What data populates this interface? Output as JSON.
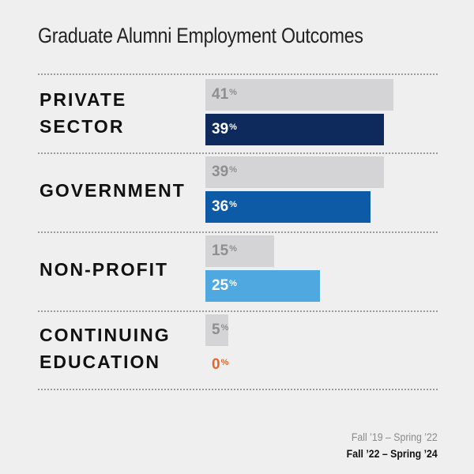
{
  "title": "Graduate Alumni Employment Outcomes",
  "colors": {
    "background": "#efefef",
    "previous": "#d4d4d6",
    "previous_text": "#8e8e8e",
    "current_text": "#ffffff",
    "zero_text": "#e8642c"
  },
  "chart_data": {
    "type": "bar",
    "orientation": "horizontal",
    "title": "Graduate Alumni Employment Outcomes",
    "categories": [
      [
        "PRIVATE",
        "SECTOR"
      ],
      [
        "GOVERNMENT"
      ],
      [
        "NON-PROFIT"
      ],
      [
        "CONTINUING",
        "EDUCATION"
      ]
    ],
    "series": [
      {
        "name": "Fall ’19 – Spring ’22",
        "values": [
          41,
          39,
          15,
          5
        ],
        "color": "#d4d4d6"
      },
      {
        "name": "Fall ’22 – Spring ’24",
        "values": [
          39,
          36,
          25,
          0
        ],
        "colors": [
          "#0e2a5c",
          "#0d5aa7",
          "#4fa8df",
          "#e8642c"
        ]
      }
    ],
    "value_suffix": "%",
    "legend": "bottom-right",
    "grid": false,
    "xlim": [
      0,
      41
    ]
  }
}
